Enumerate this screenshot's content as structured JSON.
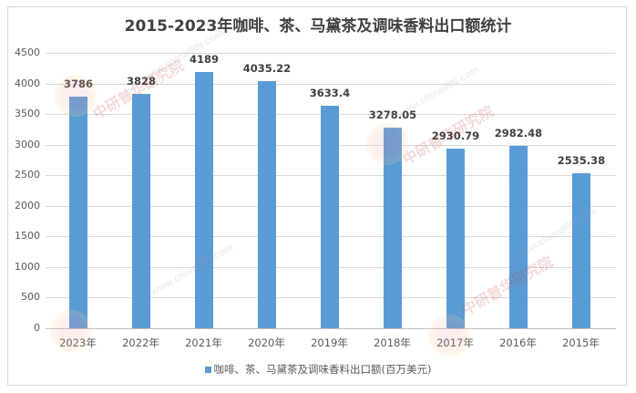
{
  "chart_data": {
    "type": "bar",
    "title": "2015-2023年咖啡、茶、马黛茶及调味香料出口额统计",
    "categories": [
      "2023年",
      "2022年",
      "2021年",
      "2020年",
      "2019年",
      "2018年",
      "2017年",
      "2016年",
      "2015年"
    ],
    "series": [
      {
        "name": "咖啡、茶、马黛茶及调味香料出口额(百万美元)",
        "color": "#5b9bd5",
        "values": [
          3786,
          3828,
          4189,
          4035.22,
          3633.4,
          3278.05,
          2930.79,
          2982.48,
          2535.38
        ]
      }
    ],
    "data_labels": [
      "3786",
      "3828",
      "4189",
      "4035.22",
      "3633.4",
      "3278.05",
      "2930.79",
      "2982.48",
      "2535.38"
    ],
    "xlabel": "",
    "ylabel": "",
    "ylim": [
      0,
      4500
    ],
    "yticks": [
      "0",
      "500",
      "1000",
      "1500",
      "2000",
      "2500",
      "3000",
      "3500",
      "4000",
      "4500"
    ],
    "grid": true,
    "legend_position": "bottom"
  },
  "legend": {
    "label": "咖啡、茶、马黛茶及调味香料出口额(百万美元)"
  },
  "watermark": {
    "brand": "中研普华研究院",
    "url": "www.chinaIRN.com",
    "logo": "CIRN"
  }
}
